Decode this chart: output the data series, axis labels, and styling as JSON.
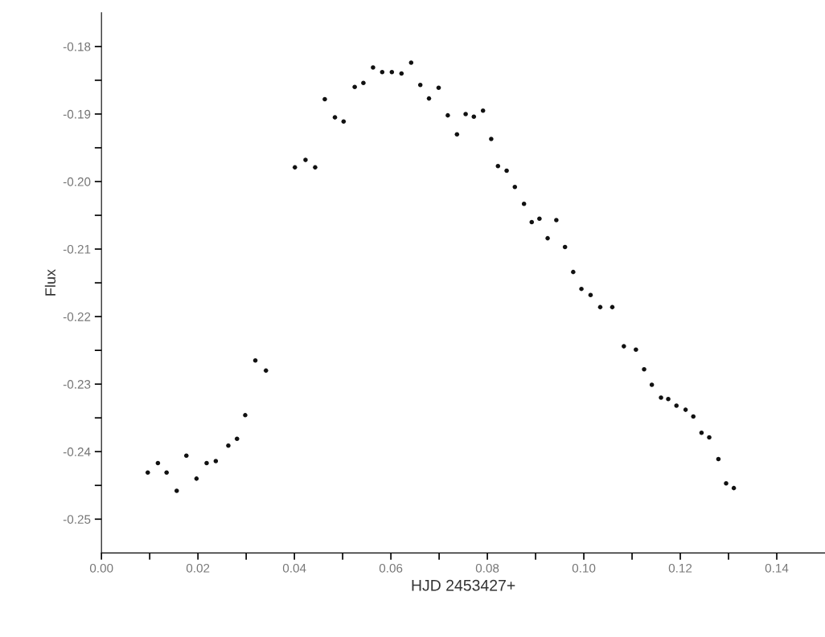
{
  "chart_data": {
    "type": "scatter",
    "xlabel": "HJD 2453427+",
    "ylabel": "Flux",
    "marker": "circle",
    "grid": false,
    "legend": false,
    "xlim": [
      0,
      0.15
    ],
    "ylim": [
      -0.255,
      -0.175
    ],
    "xticks": [
      {
        "value": 0,
        "label": "0.00"
      },
      {
        "value": 0.01,
        "label": null
      },
      {
        "value": 0.02,
        "label": "0.02"
      },
      {
        "value": 0.03,
        "label": null
      },
      {
        "value": 0.04,
        "label": "0.04"
      },
      {
        "value": 0.05,
        "label": null
      },
      {
        "value": 0.06,
        "label": "0.06"
      },
      {
        "value": 0.07,
        "label": null
      },
      {
        "value": 0.08,
        "label": "0.08"
      },
      {
        "value": 0.09,
        "label": null
      },
      {
        "value": 0.1,
        "label": "0.10"
      },
      {
        "value": 0.11,
        "label": null
      },
      {
        "value": 0.12,
        "label": "0.12"
      },
      {
        "value": 0.13,
        "label": null
      },
      {
        "value": 0.14,
        "label": "0.14"
      }
    ],
    "yticks": [
      {
        "value": -0.18,
        "label": "-0.18"
      },
      {
        "value": -0.185,
        "label": null
      },
      {
        "value": -0.19,
        "label": "-0.19"
      },
      {
        "value": -0.195,
        "label": null
      },
      {
        "value": -0.2,
        "label": "-0.20"
      },
      {
        "value": -0.205,
        "label": null
      },
      {
        "value": -0.21,
        "label": "-0.21"
      },
      {
        "value": -0.215,
        "label": null
      },
      {
        "value": -0.22,
        "label": "-0.22"
      },
      {
        "value": -0.225,
        "label": null
      },
      {
        "value": -0.23,
        "label": "-0.23"
      },
      {
        "value": -0.235,
        "label": null
      },
      {
        "value": -0.24,
        "label": "-0.24"
      },
      {
        "value": -0.245,
        "label": null
      },
      {
        "value": -0.25,
        "label": "-0.25"
      }
    ],
    "series": [
      {
        "color": "#111111",
        "x": [
          0.0096,
          0.0117,
          0.0135,
          0.0156,
          0.0176,
          0.0197,
          0.0218,
          0.0237,
          0.0263,
          0.0281,
          0.0298,
          0.0319,
          0.0341,
          0.0401,
          0.0423,
          0.0443,
          0.0463,
          0.0484,
          0.0502,
          0.0525,
          0.0543,
          0.0563,
          0.0582,
          0.0602,
          0.0622,
          0.0642,
          0.0661,
          0.0679,
          0.0699,
          0.0718,
          0.0737,
          0.0755,
          0.0772,
          0.0791,
          0.0808,
          0.0822,
          0.084,
          0.0857,
          0.0876,
          0.0892,
          0.0908,
          0.0925,
          0.0943,
          0.0961,
          0.0978,
          0.0995,
          0.1014,
          0.1034,
          0.1059,
          0.1083,
          0.1108,
          0.1125,
          0.1141,
          0.116,
          0.1175,
          0.1192,
          0.1211,
          0.1227,
          0.1244,
          0.126,
          0.1279,
          0.1295,
          0.1311
        ],
        "values": [
          -0.2431,
          -0.2417,
          -0.2431,
          -0.2458,
          -0.2406,
          -0.244,
          -0.2417,
          -0.2414,
          -0.2391,
          -0.2381,
          -0.2346,
          -0.2265,
          -0.228,
          -0.1979,
          -0.1968,
          -0.1979,
          -0.1878,
          -0.1905,
          -0.1911,
          -0.186,
          -0.1854,
          -0.1831,
          -0.1838,
          -0.1838,
          -0.184,
          -0.1824,
          -0.1857,
          -0.1877,
          -0.1861,
          -0.1902,
          -0.193,
          -0.19,
          -0.1904,
          -0.1895,
          -0.1937,
          -0.1977,
          -0.1984,
          -0.2008,
          -0.2033,
          -0.206,
          -0.2055,
          -0.2084,
          -0.2057,
          -0.2097,
          -0.2134,
          -0.2159,
          -0.2168,
          -0.2186,
          -0.2186,
          -0.2244,
          -0.2249,
          -0.2278,
          -0.2301,
          -0.232,
          -0.2322,
          -0.2332,
          -0.2338,
          -0.2348,
          -0.2372,
          -0.2379,
          -0.2411,
          -0.2447,
          -0.2454
        ]
      }
    ]
  }
}
